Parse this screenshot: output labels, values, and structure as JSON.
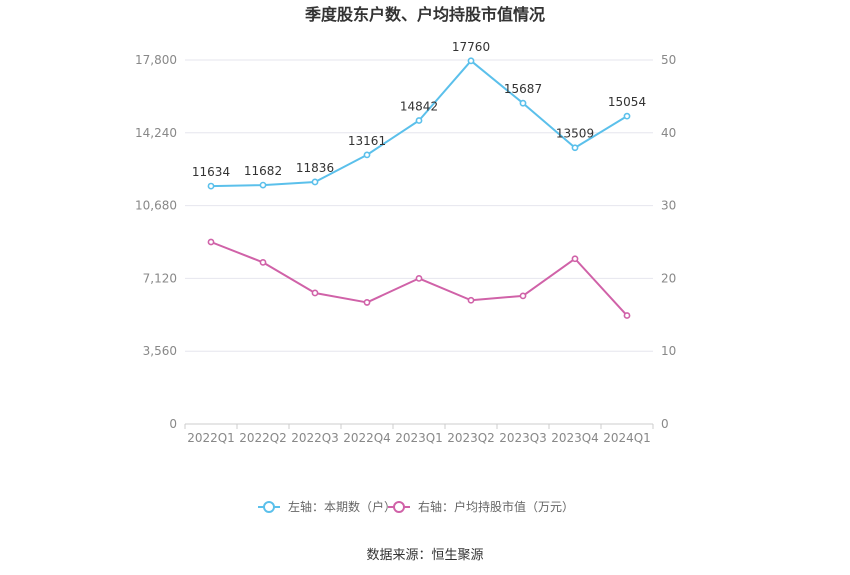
{
  "chart_data": {
    "type": "line",
    "title": "季度股东户数、户均持股市值情况",
    "categories": [
      "2022Q1",
      "2022Q2",
      "2022Q3",
      "2022Q4",
      "2023Q1",
      "2023Q2",
      "2023Q3",
      "2023Q4",
      "2024Q1"
    ],
    "left_axis": {
      "ylim": [
        0,
        17800
      ],
      "ticks": [
        0,
        3560,
        7120,
        10680,
        14240,
        17800
      ],
      "tick_labels": [
        "0",
        "3,560",
        "7,120",
        "10,680",
        "14,240",
        "17,800"
      ]
    },
    "right_axis": {
      "ylim": [
        0,
        50
      ],
      "ticks": [
        0,
        10,
        20,
        30,
        40,
        50
      ],
      "tick_labels": [
        "0",
        "10",
        "20",
        "30",
        "40",
        "50"
      ]
    },
    "series": [
      {
        "name": "左轴：本期数（户）",
        "axis": "left",
        "color": "#5bc0eb",
        "values": [
          11634,
          11682,
          11836,
          13161,
          14842,
          17760,
          15687,
          13509,
          15054
        ],
        "labels": [
          "11634",
          "11682",
          "11836",
          "13161",
          "14842",
          "17760",
          "15687",
          "13509",
          "15054"
        ]
      },
      {
        "name": "右轴：户均持股市值（万元）",
        "axis": "right",
        "color": "#d062a8",
        "values": [
          25.0,
          22.2,
          18.0,
          16.7,
          20.0,
          17.0,
          17.6,
          22.7,
          14.9
        ]
      }
    ],
    "grid": true,
    "legend_position": "bottom"
  },
  "source": "数据来源：恒生聚源"
}
